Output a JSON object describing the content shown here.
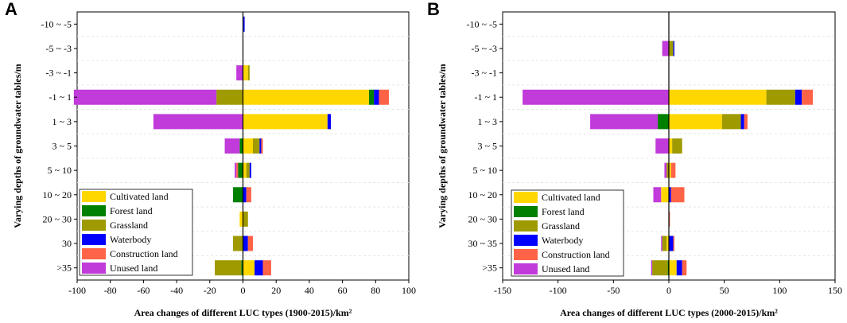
{
  "chart_data": [
    {
      "type": "bar",
      "orientation": "horizontal",
      "stacked": "diverging",
      "panel": "A",
      "categories": [
        "-10 ~ -5",
        "-5 ~ -3",
        "-3 ~ -1",
        "-1 ~ 1",
        "1 ~ 3",
        "3 ~ 5",
        "5 ~ 10",
        "10 ~ 20",
        "20 ~ 30",
        "30",
        ">35"
      ],
      "series": [
        {
          "name": "Cultivated land",
          "color": "#FFD700",
          "values": [
            0,
            0,
            3,
            76,
            51,
            6,
            2,
            0,
            -2,
            0,
            7
          ]
        },
        {
          "name": "Forest land",
          "color": "#008000",
          "values": [
            0,
            0,
            0,
            3,
            0,
            -2,
            -3,
            -6,
            0,
            0,
            -1
          ]
        },
        {
          "name": "Grassland",
          "color": "#9E9A00",
          "values": [
            0,
            0,
            1,
            -16,
            0,
            4,
            2,
            0,
            3,
            -6,
            -16
          ]
        },
        {
          "name": "Waterbody",
          "color": "#0000FF",
          "values": [
            1,
            0,
            0,
            3,
            2,
            1,
            1,
            2,
            0,
            3,
            5
          ]
        },
        {
          "name": "Construction land",
          "color": "#FF6347",
          "values": [
            0,
            0,
            0,
            6,
            0,
            1,
            -1,
            3,
            0,
            3,
            5
          ]
        },
        {
          "name": "Unused land",
          "color": "#C13BDA",
          "values": [
            0,
            0,
            -4,
            -86,
            -54,
            -9,
            -1,
            0,
            0,
            0,
            0
          ]
        }
      ],
      "xlabel": "Area changes of different LUC types (1900-2015)/km²",
      "ylabel": "Varying depths of groundwater tables/m",
      "xlim": [
        -100,
        100
      ],
      "xticks": [
        "-100",
        "-80",
        "-60",
        "-40",
        "-20",
        "0",
        "20",
        "40",
        "60",
        "80",
        "100"
      ],
      "legend_position": "bottom-left"
    },
    {
      "type": "bar",
      "orientation": "horizontal",
      "stacked": "diverging",
      "panel": "B",
      "categories": [
        "-10 ~ -5",
        "-5 ~ -3",
        "-3 ~ -1",
        "-1 ~ 1",
        "1 ~ 3",
        "3 ~ 5",
        "5 ~ 10",
        "10 ~ 20",
        "20 ~ 30",
        "30 ~ 35",
        ">35"
      ],
      "series": [
        {
          "name": "Cultivated land",
          "color": "#FFD700",
          "values": [
            0,
            0,
            0,
            88,
            48,
            3,
            2,
            -7,
            0,
            -2,
            7
          ]
        },
        {
          "name": "Forest land",
          "color": "#008000",
          "values": [
            0,
            0,
            0,
            0,
            -10,
            0,
            0,
            0,
            0,
            0,
            -1
          ]
        },
        {
          "name": "Grassland",
          "color": "#9E9A00",
          "values": [
            0,
            4,
            0,
            26,
            17,
            9,
            -2,
            0,
            0,
            -4,
            -14
          ]
        },
        {
          "name": "Waterbody",
          "color": "#0000FF",
          "values": [
            0,
            1,
            0,
            6,
            3,
            0,
            0,
            2,
            0,
            4,
            5
          ]
        },
        {
          "name": "Construction land",
          "color": "#FF6347",
          "values": [
            0,
            0,
            0,
            10,
            3,
            0,
            4,
            12,
            1,
            1,
            4
          ]
        },
        {
          "name": "Unused land",
          "color": "#C13BDA",
          "values": [
            0,
            -6,
            0,
            -132,
            -61,
            -12,
            -2,
            -7,
            0,
            -1,
            -1
          ]
        }
      ],
      "xlabel": "Area changes of different LUC types (2000-2015)/km²",
      "ylabel": "Varying depths of groundwater tables/m",
      "xlim": [
        -150,
        150
      ],
      "xticks": [
        "-150",
        "-100",
        "-50",
        "0",
        "50",
        "100",
        "150"
      ],
      "legend_position": "bottom-left"
    }
  ]
}
